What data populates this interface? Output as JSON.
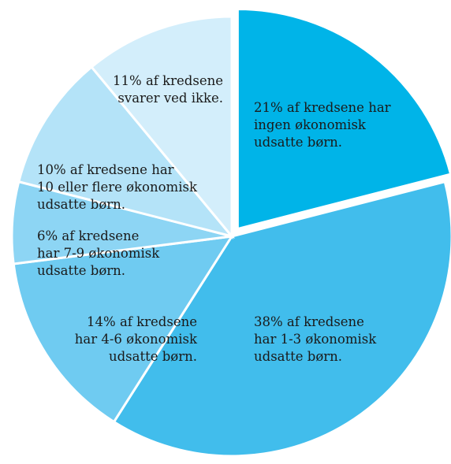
{
  "chart_data": {
    "type": "pie",
    "title": "",
    "slices": [
      {
        "value": 21,
        "color": "#00b4e8",
        "exploded": true,
        "label": [
          "21% af kredsene har",
          "ingen økonomisk",
          "udsatte børn."
        ]
      },
      {
        "value": 38,
        "color": "#41bdec",
        "label": [
          "38% af kredsene",
          "har 1-3 økonomisk",
          "udsatte børn."
        ]
      },
      {
        "value": 14,
        "color": "#6fcbf1",
        "label": [
          "14% af kredsene",
          "har 4-6 økonomisk",
          "udsatte børn."
        ]
      },
      {
        "value": 6,
        "color": "#8dd5f4",
        "label": [
          "6% af kredsene",
          "har 7-9 økonomisk",
          "udsatte børn."
        ]
      },
      {
        "value": 10,
        "color": "#b4e3f8",
        "label": [
          "10% af kredsene har",
          "10 eller flere økonomisk",
          "udsatte børn."
        ]
      },
      {
        "value": 11,
        "color": "#d3eefb",
        "label": [
          "11% af kredsene",
          "svarer ved ikke."
        ]
      }
    ]
  }
}
